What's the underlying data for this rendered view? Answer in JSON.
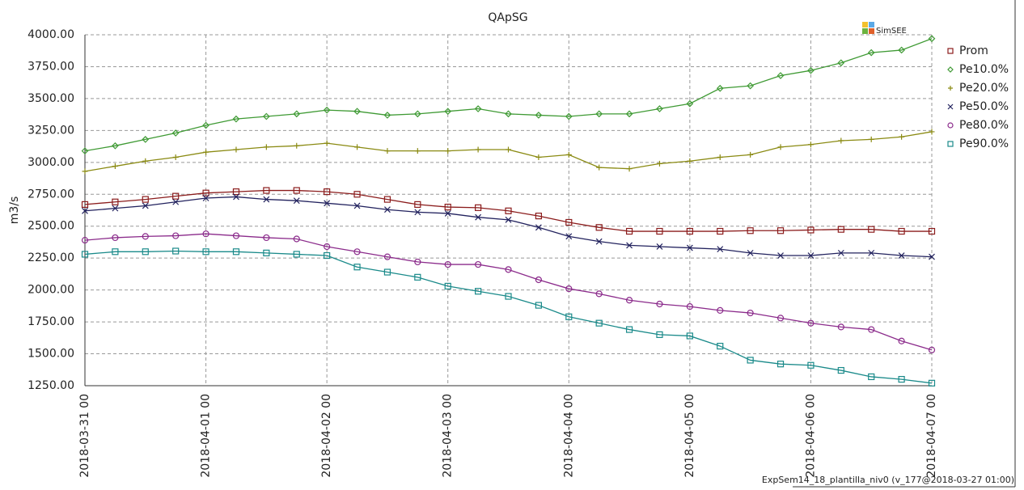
{
  "chart_data": {
    "type": "line",
    "title": "QApSG",
    "y_label": "m3/s",
    "logo": "SimSEE",
    "footer": "ExpSem14_18_plantilla_niv0 (v_177@2018-03-27 01:00)",
    "x": [
      "2018-03-31 00",
      "2018-03-31 06",
      "2018-03-31 12",
      "2018-03-31 18",
      "2018-04-01 00",
      "2018-04-01 06",
      "2018-04-01 12",
      "2018-04-01 18",
      "2018-04-02 00",
      "2018-04-02 06",
      "2018-04-02 12",
      "2018-04-02 18",
      "2018-04-03 00",
      "2018-04-03 06",
      "2018-04-03 12",
      "2018-04-03 18",
      "2018-04-04 00",
      "2018-04-04 06",
      "2018-04-04 12",
      "2018-04-04 18",
      "2018-04-05 00",
      "2018-04-05 06",
      "2018-04-05 12",
      "2018-04-05 18",
      "2018-04-06 00",
      "2018-04-06 06",
      "2018-04-06 12",
      "2018-04-06 18",
      "2018-04-07 00"
    ],
    "xlim": [
      "2018-03-31 00",
      "2018-04-07 00"
    ],
    "xticks": [
      "2018-03-31 00",
      "2018-04-01 00",
      "2018-04-02 00",
      "2018-04-03 00",
      "2018-04-04 00",
      "2018-04-05 00",
      "2018-04-06 00",
      "2018-04-07 00"
    ],
    "ylim": [
      1250,
      4000
    ],
    "yticks": [
      {
        "value": 1250,
        "label": "1250.00"
      },
      {
        "value": 1500,
        "label": "1500.00"
      },
      {
        "value": 1750,
        "label": "1750.00"
      },
      {
        "value": 2000,
        "label": "2000.00"
      },
      {
        "value": 2250,
        "label": "2250.00"
      },
      {
        "value": 2500,
        "label": "2500.00"
      },
      {
        "value": 2750,
        "label": "2750.00"
      },
      {
        "value": 3000,
        "label": "3000.00"
      },
      {
        "value": 3250,
        "label": "3250.00"
      },
      {
        "value": 3500,
        "label": "3500.00"
      },
      {
        "value": 3750,
        "label": "3750.00"
      },
      {
        "value": 4000,
        "label": "4000.00"
      }
    ],
    "grid": true,
    "legend": "right",
    "series": [
      {
        "name": "Prom",
        "color": "#8b1c1c",
        "marker": "square",
        "values": [
          2670,
          2690,
          2710,
          2735,
          2760,
          2770,
          2780,
          2780,
          2770,
          2750,
          2710,
          2670,
          2650,
          2645,
          2620,
          2580,
          2530,
          2490,
          2460,
          2460,
          2460,
          2460,
          2465,
          2465,
          2470,
          2475,
          2475,
          2460,
          2460
        ]
      },
      {
        "name": "Pe10.0%",
        "color": "#3f9a34",
        "marker": "diamond",
        "values": [
          3090,
          3130,
          3180,
          3230,
          3290,
          3340,
          3360,
          3380,
          3410,
          3400,
          3370,
          3380,
          3400,
          3420,
          3380,
          3370,
          3360,
          3380,
          3380,
          3420,
          3460,
          3580,
          3600,
          3680,
          3720,
          3780,
          3860,
          3880,
          3970
        ]
      },
      {
        "name": "Pe20.0%",
        "color": "#8a8a12",
        "marker": "plus",
        "values": [
          2930,
          2970,
          3010,
          3040,
          3080,
          3100,
          3120,
          3130,
          3150,
          3120,
          3090,
          3090,
          3090,
          3100,
          3100,
          3040,
          3060,
          2960,
          2950,
          2990,
          3010,
          3040,
          3060,
          3120,
          3140,
          3170,
          3180,
          3200,
          3240
        ]
      },
      {
        "name": "Pe50.0%",
        "color": "#22225e",
        "marker": "cross",
        "values": [
          2620,
          2640,
          2660,
          2690,
          2720,
          2730,
          2710,
          2700,
          2680,
          2660,
          2630,
          2610,
          2600,
          2570,
          2550,
          2490,
          2420,
          2380,
          2350,
          2340,
          2330,
          2320,
          2290,
          2270,
          2270,
          2290,
          2290,
          2270,
          2260
        ]
      },
      {
        "name": "Pe80.0%",
        "color": "#8b2b8b",
        "marker": "circle",
        "values": [
          2390,
          2410,
          2420,
          2425,
          2440,
          2425,
          2410,
          2400,
          2340,
          2300,
          2260,
          2220,
          2200,
          2200,
          2160,
          2080,
          2010,
          1970,
          1920,
          1890,
          1870,
          1840,
          1820,
          1780,
          1740,
          1710,
          1690,
          1600,
          1530
        ]
      },
      {
        "name": "Pe90.0%",
        "color": "#1a8a8a",
        "marker": "square",
        "values": [
          2280,
          2300,
          2300,
          2305,
          2300,
          2300,
          2290,
          2280,
          2270,
          2180,
          2140,
          2100,
          2030,
          1990,
          1950,
          1880,
          1790,
          1740,
          1690,
          1650,
          1640,
          1560,
          1450,
          1420,
          1410,
          1370,
          1320,
          1300,
          1270
        ]
      }
    ]
  }
}
